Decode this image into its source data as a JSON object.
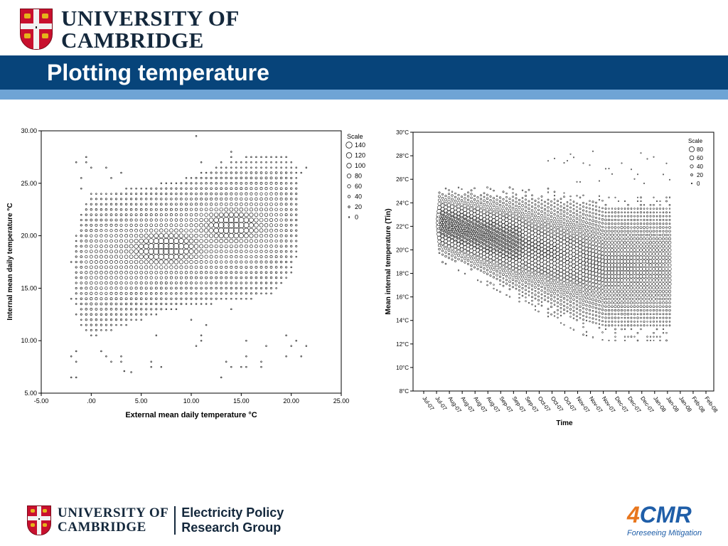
{
  "header": {
    "university_line1": "UNIVERSITY OF",
    "university_line2": "CAMBRIDGE",
    "title": "Plotting temperature"
  },
  "footer": {
    "university_line1": "UNIVERSITY OF",
    "university_line2": "CAMBRIDGE",
    "group_line1": "Electricity Policy",
    "group_line2": "Research Group",
    "brand_prefix": "4",
    "brand_name": "CMR",
    "brand_tagline": "Foreseeing Mitigation"
  },
  "colors": {
    "title_bar": "#07447a",
    "title_bar_accent": "#6fa4d5",
    "crest_red": "#c8102e",
    "brand_blue": "#1f5ea8",
    "brand_orange": "#e8761d"
  },
  "chart_data": [
    {
      "type": "scatter",
      "xlabel": "External mean daily temperature °C",
      "ylabel": "Internal mean daily temperature °C",
      "xlim": [
        -5,
        25
      ],
      "ylim": [
        5,
        30
      ],
      "x_ticks": [
        -5,
        0,
        5,
        10,
        15,
        20,
        25
      ],
      "x_tick_labels": [
        "-5.00",
        ".00",
        "5.00",
        "10.00",
        "15.00",
        "20.00",
        "25.00"
      ],
      "y_ticks": [
        5,
        10,
        15,
        20,
        25,
        30
      ],
      "y_tick_labels": [
        "5.00",
        "10.00",
        "15.00",
        "20.00",
        "25.00",
        "30.00"
      ],
      "grid": false,
      "legend_position": "top-right, outside plot",
      "legend_title": "Scale",
      "legend_sizes": [
        140,
        120,
        100,
        80,
        60,
        40,
        20,
        0
      ],
      "density_peaks": [
        {
          "x": 7.5,
          "y": 18.8,
          "count": 140
        },
        {
          "x": 14.0,
          "y": 21.0,
          "count": 120
        }
      ]
    },
    {
      "type": "scatter",
      "xlabel": "Time",
      "ylabel": "Mean internal temperature (Tin)",
      "x_tick_labels": [
        "Jul-07",
        "Jul-07",
        "Aug-07",
        "Aug-07",
        "Aug-07",
        "Aug-07",
        "Sep-07",
        "Sep-07",
        "Sep-07",
        "Oct-07",
        "Oct-07",
        "Oct-07",
        "Nov-07",
        "Nov-07",
        "Nov-07",
        "Dec-07",
        "Dec-07",
        "Dec-07",
        "Jan-08",
        "Jan-08",
        "Jan-08",
        "Feb-08",
        "Feb-08"
      ],
      "ylim": [
        8,
        30
      ],
      "y_ticks": [
        8,
        10,
        12,
        14,
        16,
        18,
        20,
        22,
        24,
        26,
        28,
        30
      ],
      "y_tick_labels": [
        "8°C",
        "10°C",
        "12°C",
        "14°C",
        "16°C",
        "18°C",
        "20°C",
        "22°C",
        "24°C",
        "26°C",
        "28°C",
        "30°C"
      ],
      "grid": false,
      "legend_position": "top-right, inside plot",
      "legend_title": "Scale",
      "legend_sizes": [
        80,
        60,
        40,
        20,
        0
      ],
      "density_peaks": [
        {
          "x": "Jul-07",
          "y": 22.5,
          "count": 80
        },
        {
          "x": "Aug-07",
          "y": 21.0,
          "count": 60
        },
        {
          "x": "Oct-07",
          "y": 19.5,
          "count": 40
        },
        {
          "x": "Dec-07",
          "y": 18.5,
          "count": 40
        }
      ]
    }
  ]
}
